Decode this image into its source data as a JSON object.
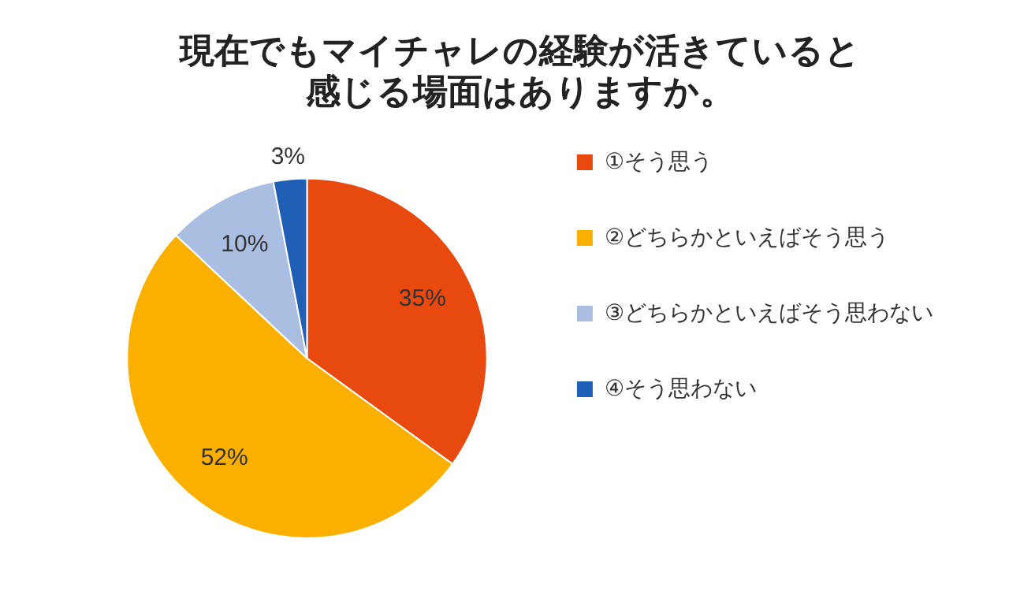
{
  "chart_data": {
    "type": "pie",
    "title": "現在でもマイチャレの経験が活きていると感じる場面はありますか。",
    "categories": [
      "①そう思う",
      "②どちらかといえばそう思う",
      "③どちらかといえばそう思わない",
      "④そう思わない"
    ],
    "values": [
      35,
      52,
      10,
      3
    ],
    "colors": [
      "#e8490f",
      "#fbb000",
      "#a9bee0",
      "#1f5fb5"
    ],
    "value_labels": [
      "35%",
      "52%",
      "10%",
      "3%"
    ],
    "legend": "right"
  }
}
